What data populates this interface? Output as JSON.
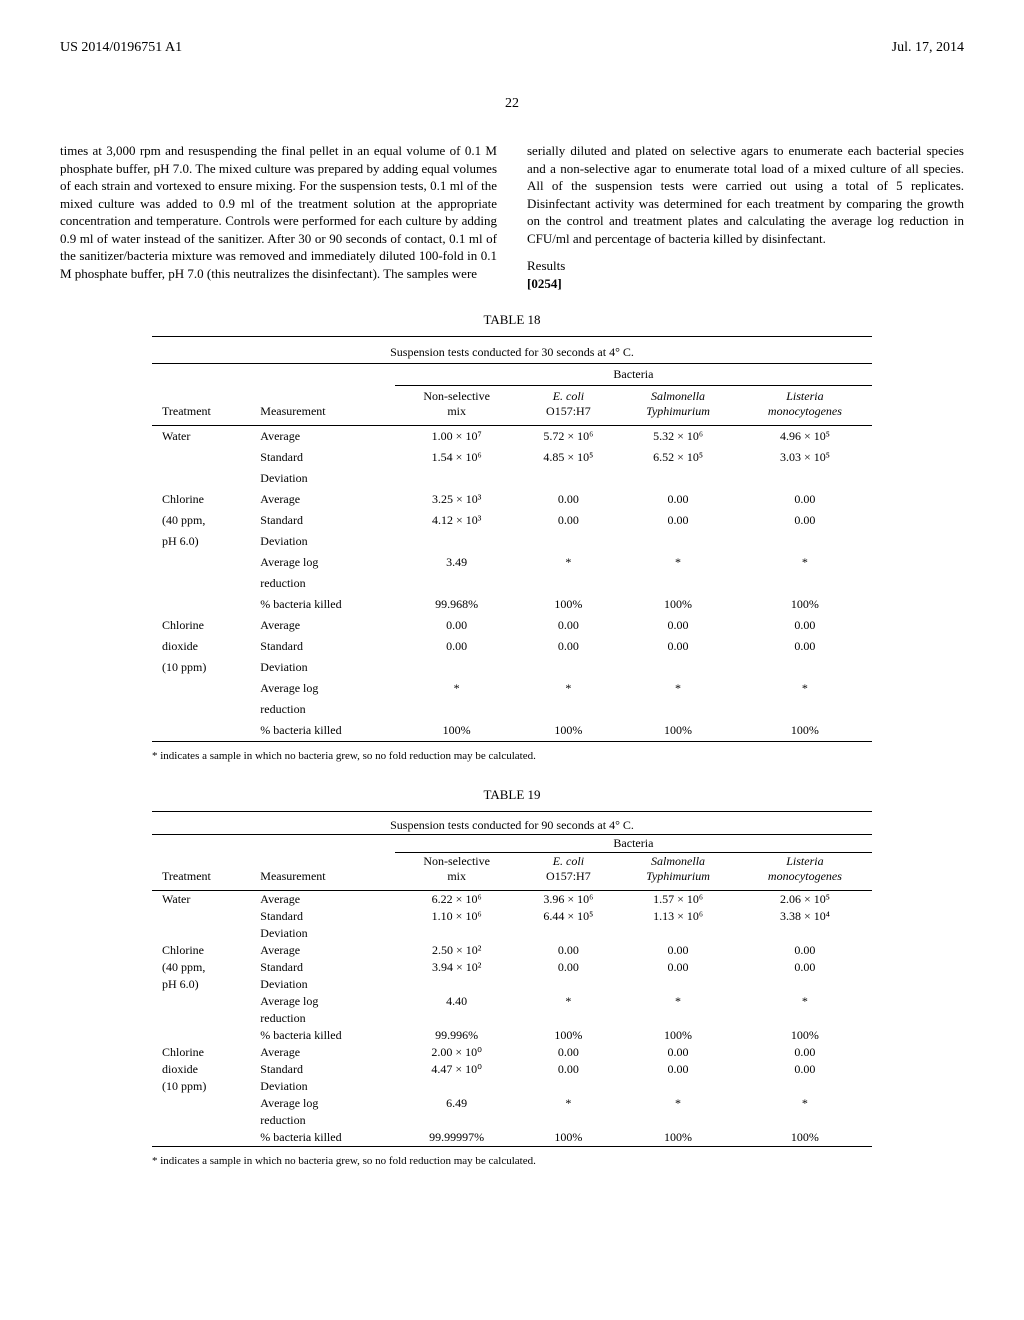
{
  "header": {
    "pub_number": "US 2014/0196751 A1",
    "date": "Jul. 17, 2014",
    "page": "22"
  },
  "left_para": "times at 3,000 rpm and resuspending the final pellet in an equal volume of 0.1 M phosphate buffer, pH 7.0. The mixed culture was prepared by adding equal volumes of each strain and vortexed to ensure mixing. For the suspension tests, 0.1 ml of the mixed culture was added to 0.9 ml of the treatment solution at the appropriate concentration and temperature. Controls were performed for each culture by adding 0.9 ml of water instead of the sanitizer. After 30 or 90 seconds of contact, 0.1 ml of the sanitizer/bacteria mixture was removed and immediately diluted 100-fold in 0.1 M phosphate buffer, pH 7.0 (this neutralizes the disinfectant). The samples were",
  "right_para": "serially diluted and plated on selective agars to enumerate each bacterial species and a non-selective agar to enumerate total load of a mixed culture of all species. All of the suspension tests were carried out using a total of 5 replicates. Disinfectant activity was determined for each treatment by comparing the growth on the control and treatment plates and calculating the average log reduction in CFU/ml and percentage of bacteria killed by disinfectant.",
  "results_label": "Results",
  "para_num": "[0254]",
  "table18": {
    "title": "TABLE 18",
    "caption": "Suspension tests conducted for 30 seconds at 4° C.",
    "bacteria_header": "Bacteria",
    "cols": [
      "Treatment",
      "Measurement",
      "Non-selective mix",
      "E. coli O157:H7",
      "Salmonella Typhimurium",
      "Listeria monocytogenes"
    ],
    "rows": [
      [
        "Water",
        "Average",
        "1.00 × 10⁷",
        "5.72 × 10⁶",
        "5.32 × 10⁶",
        "4.96 × 10⁵"
      ],
      [
        "",
        "Standard",
        "1.54 × 10⁶",
        "4.85 × 10⁵",
        "6.52 × 10⁵",
        "3.03 × 10⁵"
      ],
      [
        "",
        "Deviation",
        "",
        "",
        "",
        ""
      ],
      [
        "Chlorine",
        "Average",
        "3.25 × 10³",
        "0.00",
        "0.00",
        "0.00"
      ],
      [
        "(40 ppm,",
        "Standard",
        "4.12 × 10³",
        "0.00",
        "0.00",
        "0.00"
      ],
      [
        "pH 6.0)",
        "Deviation",
        "",
        "",
        "",
        ""
      ],
      [
        "",
        "Average log",
        "3.49",
        "*",
        "*",
        "*"
      ],
      [
        "",
        "reduction",
        "",
        "",
        "",
        ""
      ],
      [
        "",
        "% bacteria killed",
        "99.968%",
        "100%",
        "100%",
        "100%"
      ],
      [
        "Chlorine",
        "Average",
        "0.00",
        "0.00",
        "0.00",
        "0.00"
      ],
      [
        "dioxide",
        "Standard",
        "0.00",
        "0.00",
        "0.00",
        "0.00"
      ],
      [
        "(10 ppm)",
        "Deviation",
        "",
        "",
        "",
        ""
      ],
      [
        "",
        "Average log",
        "*",
        "*",
        "*",
        "*"
      ],
      [
        "",
        "reduction",
        "",
        "",
        "",
        ""
      ],
      [
        "",
        "% bacteria killed",
        "100%",
        "100%",
        "100%",
        "100%"
      ]
    ],
    "footnote": "* indicates a sample in which no bacteria grew, so no fold reduction may be calculated."
  },
  "table19": {
    "title": "TABLE 19",
    "caption": "Suspension tests conducted for 90 seconds at 4° C.",
    "bacteria_header": "Bacteria",
    "cols": [
      "Treatment",
      "Measurement",
      "Non-selective mix",
      "E. coli O157:H7",
      "Salmonella Typhimurium",
      "Listeria monocytogenes"
    ],
    "rows": [
      [
        "Water",
        "Average",
        "6.22 × 10⁶",
        "3.96 × 10⁶",
        "1.57 × 10⁶",
        "2.06 × 10⁵"
      ],
      [
        "",
        "Standard",
        "1.10 × 10⁶",
        "6.44 × 10⁵",
        "1.13 × 10⁶",
        "3.38 × 10⁴"
      ],
      [
        "",
        "Deviation",
        "",
        "",
        "",
        ""
      ],
      [
        "Chlorine",
        "Average",
        "2.50 × 10²",
        "0.00",
        "0.00",
        "0.00"
      ],
      [
        "(40 ppm,",
        "Standard",
        "3.94 × 10²",
        "0.00",
        "0.00",
        "0.00"
      ],
      [
        "pH 6.0)",
        "Deviation",
        "",
        "",
        "",
        ""
      ],
      [
        "",
        "Average log",
        "4.40",
        "*",
        "*",
        "*"
      ],
      [
        "",
        "reduction",
        "",
        "",
        "",
        ""
      ],
      [
        "",
        "% bacteria killed",
        "99.996%",
        "100%",
        "100%",
        "100%"
      ],
      [
        "Chlorine",
        "Average",
        "2.00 × 10⁰",
        "0.00",
        "0.00",
        "0.00"
      ],
      [
        "dioxide",
        "Standard",
        "4.47 × 10⁰",
        "0.00",
        "0.00",
        "0.00"
      ],
      [
        "(10 ppm)",
        "Deviation",
        "",
        "",
        "",
        ""
      ],
      [
        "",
        "Average log",
        "6.49",
        "*",
        "*",
        "*"
      ],
      [
        "",
        "reduction",
        "",
        "",
        "",
        ""
      ],
      [
        "",
        "% bacteria killed",
        "99.99997%",
        "100%",
        "100%",
        "100%"
      ]
    ],
    "footnote": "* indicates a sample in which no bacteria grew, so no fold reduction may be calculated."
  }
}
